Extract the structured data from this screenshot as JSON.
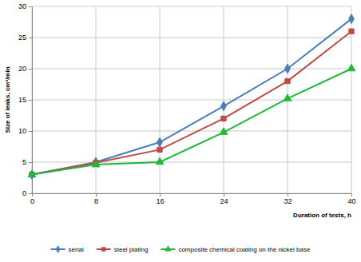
{
  "chart_data": {
    "type": "line",
    "x_label": "Duration of tests, h",
    "y_label": "Size of leaks, cm³/min",
    "x": [
      0,
      8,
      16,
      24,
      32,
      40
    ],
    "series": [
      {
        "name": "serial",
        "color": "#4a7ebb",
        "marker": "diamond",
        "values": [
          3,
          5,
          8.2,
          14,
          20,
          28
        ]
      },
      {
        "name": "steel plating",
        "color": "#be4b48",
        "marker": "square",
        "values": [
          3,
          4.9,
          7,
          12,
          18,
          26
        ]
      },
      {
        "name": "composite chemical coating on the nickel base",
        "color": "#1db83a",
        "marker": "triangle",
        "values": [
          3,
          4.6,
          5,
          9.8,
          15.2,
          20
        ]
      }
    ],
    "xlim": [
      0,
      40
    ],
    "xticks": [
      0,
      8,
      16,
      24,
      32,
      40
    ],
    "ylim": [
      0,
      30
    ],
    "yticks": [
      0,
      5,
      10,
      15,
      20,
      25,
      30
    ],
    "grid": true,
    "legend": "bottom"
  }
}
